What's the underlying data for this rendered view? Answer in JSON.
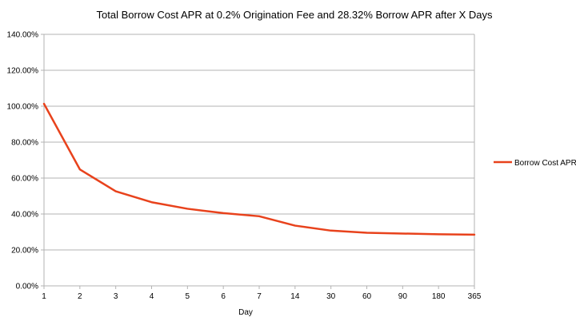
{
  "chart_data": {
    "type": "line",
    "title": "Total Borrow Cost APR at 0.2% Origination Fee and 28.32% Borrow APR after X Days",
    "xlabel": "Day",
    "ylabel": "",
    "categories": [
      "1",
      "2",
      "3",
      "4",
      "5",
      "6",
      "7",
      "14",
      "30",
      "60",
      "90",
      "180",
      "365"
    ],
    "series": [
      {
        "name": "Borrow Cost APR",
        "color": "#e8421c",
        "values": [
          101.32,
          64.82,
          52.65,
          46.57,
          42.92,
          40.49,
          38.75,
          33.53,
          30.75,
          29.54,
          29.13,
          28.73,
          28.52
        ]
      }
    ],
    "ylim": [
      0,
      140
    ],
    "yticks": [
      0,
      20,
      40,
      60,
      80,
      100,
      120,
      140
    ],
    "ytick_labels": [
      "0.00%",
      "20.00%",
      "40.00%",
      "60.00%",
      "80.00%",
      "100.00%",
      "120.00%",
      "140.00%"
    ],
    "grid": true,
    "legend_position": "right",
    "gridline_color": "#b3b3b3",
    "axis_color": "#b3b3b3"
  }
}
